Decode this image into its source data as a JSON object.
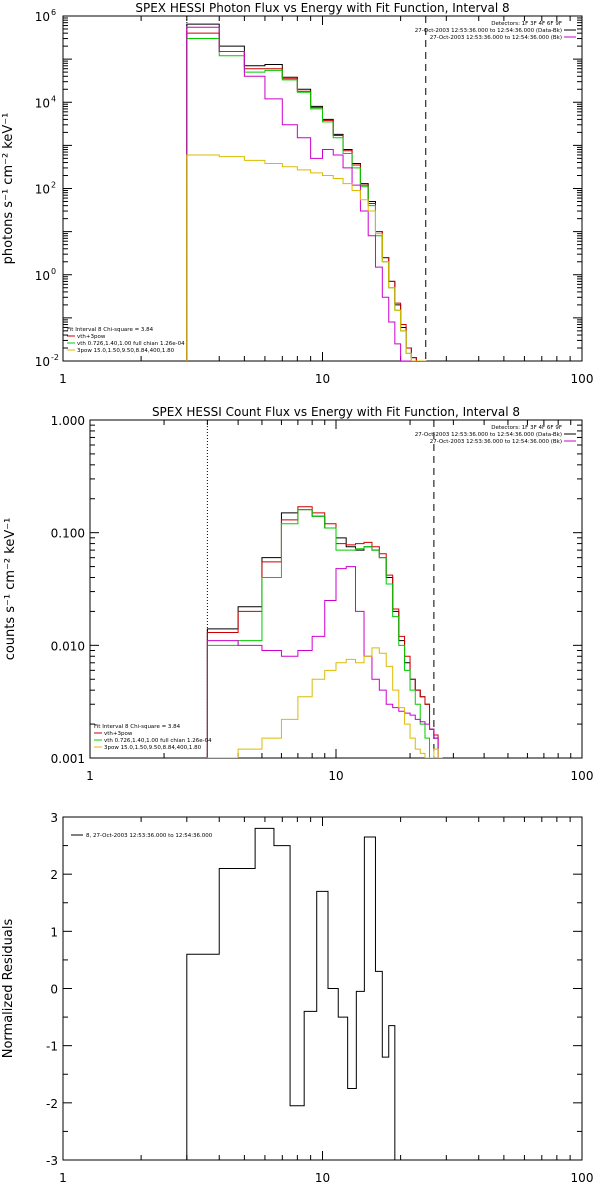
{
  "chart_data": [
    {
      "type": "line",
      "title": "SPEX HESSI Photon Flux vs Energy with Fit Function, Interval 8",
      "ylabel": "photons s⁻¹ cm⁻² keV⁻¹",
      "xlabel": "",
      "xscale": "log",
      "yscale": "log",
      "xlim": [
        1,
        100
      ],
      "ylim": [
        0.01,
        1000000
      ],
      "x_ticks": [
        1,
        10,
        100
      ],
      "x_tick_labels": [
        "1",
        "10",
        "100"
      ],
      "y_ticks": [
        0.01,
        1,
        100,
        10000,
        1000000
      ],
      "y_tick_labels": [
        "10",
        "10",
        "10",
        "10",
        "10"
      ],
      "y_tick_exponents": [
        "-2",
        "0",
        "2",
        "4",
        "6"
      ],
      "vlines": [
        {
          "x": 3.0,
          "style": "dotted",
          "color": "#000000"
        },
        {
          "x": 25.0,
          "style": "dashed",
          "color": "#000000"
        }
      ],
      "legend_top": [
        "Detectors: 1F 3F 4F 6F 9F",
        "27-Oct-2003 12:53:36.000 to 12:54:36.000 (Data-Bk)",
        "27-Oct-2003 12:53:36.000 to 12:54:36.000 (Bk)"
      ],
      "legend_top_colors": [
        "",
        "#000000",
        "#cc00cc"
      ],
      "legend_bottom": [
        "Fit Interval 8    Chi-square = 3.84",
        "vth+3pow",
        "vth 0.726,1.40,1.00  full chian 1.26e-04",
        "3pow 15.0,1.50,9.50,8.84,400,1.80"
      ],
      "legend_bottom_colors": [
        "",
        "#cc0000",
        "#00cc00",
        "#ddbb00"
      ],
      "series": [
        {
          "color": "#000000",
          "edges": [
            3.0,
            3.5,
            4.0,
            4.5,
            5.0,
            5.5,
            6.0,
            6.5,
            7.0,
            7.5,
            8.0,
            8.5,
            9.0,
            9.5,
            10.0,
            10.5,
            11.0,
            11.5,
            12.0,
            12.5,
            13.0,
            13.5,
            14.0,
            14.5,
            15.0,
            16.0,
            17.0,
            18.0,
            19.0,
            20.0,
            21.0,
            22.0,
            23.0,
            24.0,
            25.0
          ],
          "values": [
            650000,
            650000,
            200000,
            200000,
            70000,
            70000,
            75000,
            75000,
            38000,
            38000,
            20000,
            20000,
            8000,
            8000,
            4000,
            4000,
            1800,
            1800,
            800,
            800,
            380,
            380,
            130,
            130,
            50,
            10,
            2.5,
            0.7,
            0.2,
            0.06,
            0.02,
            0.012,
            0.01,
            0.01
          ]
        },
        {
          "color": "#cc0000",
          "edges": [
            3.0,
            3.5,
            4.0,
            4.5,
            5.0,
            5.5,
            6.0,
            6.5,
            7.0,
            7.5,
            8.0,
            8.5,
            9.0,
            9.5,
            10.0,
            10.5,
            11.0,
            11.5,
            12.0,
            12.5,
            13.0,
            13.5,
            14.0,
            14.5,
            15.0,
            16.0,
            17.0,
            18.0,
            19.0,
            20.0,
            21.0,
            22.0,
            23.0,
            24.0,
            25.0
          ],
          "values": [
            400000,
            400000,
            150000,
            150000,
            60000,
            60000,
            60000,
            60000,
            35000,
            35000,
            18000,
            18000,
            7500,
            7500,
            3800,
            3800,
            1700,
            1700,
            750,
            750,
            350,
            350,
            120,
            120,
            45,
            10,
            2.5,
            0.7,
            0.22,
            0.07,
            0.02,
            0.012,
            0.01,
            0.01
          ]
        },
        {
          "color": "#00cc00",
          "edges": [
            3.0,
            3.5,
            4.0,
            4.5,
            5.0,
            5.5,
            6.0,
            6.5,
            7.0,
            7.5,
            8.0,
            8.5,
            9.0,
            9.5,
            10.0,
            10.5,
            11.0,
            11.5,
            12.0,
            12.5,
            13.0,
            13.5,
            14.0,
            14.5,
            15.0,
            16.0,
            17.0,
            18.0,
            19.0,
            20.0,
            21.0,
            22.0,
            23.0,
            24.0,
            25.0
          ],
          "values": [
            300000,
            300000,
            120000,
            120000,
            50000,
            50000,
            55000,
            55000,
            33000,
            33000,
            17000,
            17000,
            7000,
            7000,
            3500,
            3500,
            1500,
            1500,
            650,
            650,
            300,
            300,
            110,
            110,
            40,
            8,
            2,
            0.5,
            0.15,
            0.05,
            0.015,
            0.01,
            0.01,
            0.01
          ]
        },
        {
          "color": "#cc00cc",
          "edges": [
            3.0,
            3.5,
            4.0,
            4.5,
            5.0,
            5.5,
            6.0,
            6.5,
            7.0,
            7.5,
            8.0,
            8.5,
            9.0,
            9.5,
            10.0,
            10.5,
            11.0,
            11.5,
            12.0,
            12.5,
            13.0,
            13.5,
            14.0,
            14.5,
            15.0,
            16.0,
            17.0,
            18.0,
            19.0,
            20.0,
            21.0,
            22.0,
            23.0,
            24.0,
            25.0
          ],
          "values": [
            550000,
            550000,
            150000,
            150000,
            40000,
            40000,
            12000,
            12000,
            3000,
            3000,
            1500,
            1500,
            500,
            500,
            800,
            800,
            600,
            600,
            300,
            300,
            120,
            120,
            30,
            30,
            8,
            1.5,
            0.3,
            0.08,
            0.025,
            0.01,
            0.01,
            0.01,
            0.01,
            0.01
          ]
        },
        {
          "color": "#ddbb00",
          "edges": [
            3.0,
            3.5,
            4.0,
            4.5,
            5.0,
            5.5,
            6.0,
            6.5,
            7.0,
            7.5,
            8.0,
            8.5,
            9.0,
            9.5,
            10.0,
            10.5,
            11.0,
            11.5,
            12.0,
            12.5,
            13.0,
            13.5,
            14.0,
            14.5,
            15.0,
            16.0,
            17.0,
            18.0,
            19.0,
            20.0,
            21.0,
            22.0,
            23.0,
            24.0,
            25.0
          ],
          "values": [
            600,
            600,
            550,
            550,
            450,
            450,
            380,
            380,
            320,
            320,
            270,
            270,
            230,
            230,
            200,
            200,
            170,
            170,
            130,
            130,
            90,
            90,
            55,
            55,
            30,
            9,
            2,
            0.5,
            0.15,
            0.05,
            0.015,
            0.01,
            0.01,
            0.01
          ]
        }
      ]
    },
    {
      "type": "line",
      "title": "SPEX HESSI Count Flux vs Energy with Fit Function, Interval 8",
      "ylabel": "counts s⁻¹ cm⁻² keV⁻¹",
      "xlabel": "",
      "xscale": "log",
      "yscale": "log",
      "xlim": [
        1,
        100
      ],
      "ylim": [
        0.001,
        1.0
      ],
      "x_ticks": [
        1,
        10,
        100
      ],
      "x_tick_labels": [
        "1",
        "10",
        "100"
      ],
      "y_ticks": [
        0.001,
        0.01,
        0.1,
        1.0
      ],
      "y_tick_labels": [
        "0.001",
        "0.010",
        "0.100",
        "1.000"
      ],
      "vlines": [
        {
          "x": 3.0,
          "style": "dotted",
          "color": "#000000"
        },
        {
          "x": 25.0,
          "style": "dashed",
          "color": "#000000"
        }
      ],
      "legend_top": [
        "Detectors: 1F 3F 4F 6F 9F",
        "27-Oct-2003 12:53:36.000 to 12:54:36.000 (Data-Bk)",
        "27-Oct-2003 12:53:36.000 to 12:54:36.000 (Bk)"
      ],
      "legend_top_colors": [
        "",
        "#000000",
        "#cc00cc"
      ],
      "legend_bottom": [
        "Fit Interval 8    Chi-square = 3.84",
        "vth+3pow",
        "vth 0.726,1.40,1.00  full chian 1.26e-04",
        "3pow 15.0,1.50,9.50,8.84,400,1.80"
      ],
      "legend_bottom_colors": [
        "",
        "#cc0000",
        "#00cc00",
        "#ddbb00"
      ],
      "series": [
        {
          "color": "#000000",
          "edges": [
            3.0,
            4.0,
            5.0,
            6.0,
            7.0,
            8.0,
            9.0,
            10.0,
            11.0,
            12.0,
            13.0,
            14.0,
            15.0,
            16.0,
            17.0,
            18.0,
            19.0,
            20.0,
            21.0,
            22.0,
            23.0,
            24.0,
            25.0,
            26.0,
            27.0
          ],
          "values": [
            0.014,
            0.022,
            0.06,
            0.15,
            0.16,
            0.14,
            0.11,
            0.09,
            0.075,
            0.07,
            0.075,
            0.07,
            0.06,
            0.04,
            0.02,
            0.011,
            0.007,
            0.005,
            0.004,
            0.0035,
            0.003,
            0.0018,
            0.0015,
            0.001
          ]
        },
        {
          "color": "#cc0000",
          "edges": [
            3.0,
            4.0,
            5.0,
            6.0,
            7.0,
            8.0,
            9.0,
            10.0,
            11.0,
            12.0,
            13.0,
            14.0,
            15.0,
            16.0,
            17.0,
            18.0,
            19.0,
            20.0,
            21.0,
            22.0,
            23.0,
            24.0,
            25.0,
            26.0,
            27.0
          ],
          "values": [
            0.013,
            0.02,
            0.055,
            0.13,
            0.17,
            0.15,
            0.12,
            0.08,
            0.078,
            0.08,
            0.082,
            0.075,
            0.065,
            0.042,
            0.021,
            0.012,
            0.008,
            0.005,
            0.004,
            0.0035,
            0.003,
            0.0018,
            0.0016,
            0.001
          ]
        },
        {
          "color": "#00cc00",
          "edges": [
            3.0,
            4.0,
            5.0,
            6.0,
            7.0,
            8.0,
            9.0,
            10.0,
            11.0,
            12.0,
            13.0,
            14.0,
            15.0,
            16.0,
            17.0,
            18.0,
            19.0,
            20.0,
            21.0,
            22.0,
            23.0,
            24.0,
            25.0,
            26.0,
            27.0
          ],
          "values": [
            0.01,
            0.011,
            0.04,
            0.12,
            0.16,
            0.14,
            0.11,
            0.07,
            0.07,
            0.072,
            0.075,
            0.07,
            0.06,
            0.035,
            0.018,
            0.01,
            0.006,
            0.004,
            0.003,
            0.002,
            0.0015,
            0.001,
            0.001,
            0.001
          ]
        },
        {
          "color": "#cc00cc",
          "edges": [
            3.0,
            4.0,
            5.0,
            6.0,
            7.0,
            8.0,
            9.0,
            10.0,
            11.0,
            12.0,
            13.0,
            14.0,
            15.0,
            16.0,
            17.0,
            18.0,
            19.0,
            20.0,
            21.0,
            22.0,
            23.0,
            24.0,
            25.0,
            26.0,
            27.0
          ],
          "values": [
            0.011,
            0.01,
            0.009,
            0.008,
            0.009,
            0.012,
            0.025,
            0.048,
            0.05,
            0.02,
            0.008,
            0.005,
            0.004,
            0.003,
            0.0028,
            0.0026,
            0.0025,
            0.0024,
            0.0022,
            0.0021,
            0.002,
            0.0018,
            0.0015,
            0.001
          ]
        },
        {
          "color": "#ddbb00",
          "edges": [
            3.0,
            4.0,
            5.0,
            6.0,
            7.0,
            8.0,
            9.0,
            10.0,
            11.0,
            12.0,
            13.0,
            14.0,
            15.0,
            16.0,
            17.0,
            18.0,
            19.0,
            20.0,
            21.0,
            22.0,
            23.0,
            24.0,
            25.0,
            26.0,
            27.0
          ],
          "values": [
            0.001,
            0.0012,
            0.0015,
            0.0022,
            0.0035,
            0.005,
            0.006,
            0.007,
            0.0075,
            0.007,
            0.008,
            0.0095,
            0.0085,
            0.0065,
            0.004,
            0.0028,
            0.002,
            0.0015,
            0.0012,
            0.0011,
            0.001,
            0.001,
            0.0012,
            0.001
          ]
        }
      ]
    },
    {
      "type": "line",
      "title": "",
      "ylabel": "Normalized Residuals",
      "xlabel": "",
      "xscale": "log",
      "yscale": "linear",
      "xlim": [
        1,
        100
      ],
      "ylim": [
        -3,
        3
      ],
      "x_ticks": [
        1,
        10,
        100
      ],
      "x_tick_labels": [
        "1",
        "10",
        "100"
      ],
      "y_ticks": [
        -3,
        -2,
        -1,
        0,
        1,
        2,
        3
      ],
      "y_tick_labels": [
        "-3",
        "-2",
        "-1",
        "0",
        "1",
        "2",
        "3"
      ],
      "legend_top": [
        "8, 27-Oct-2003 12:53:36.000 to 12:54:36.000"
      ],
      "legend_top_colors": [
        "#000000"
      ],
      "series": [
        {
          "color": "#000000",
          "edges": [
            3.0,
            3.5,
            4.0,
            4.5,
            5.0,
            5.5,
            6.0,
            6.5,
            7.0,
            7.5,
            8.0,
            8.5,
            9.0,
            9.5,
            10.0,
            10.5,
            11.0,
            11.5,
            12.0,
            12.5,
            13.0,
            13.5,
            14.0,
            14.5,
            15.0,
            16.0,
            17.0,
            18.0,
            19.0,
            20.0,
            21.0,
            22.0,
            23.0,
            24.0,
            25.0
          ],
          "values": [
            0.6,
            0.6,
            2.1,
            2.1,
            2.1,
            2.8,
            2.8,
            2.5,
            2.5,
            -2.05,
            -2.05,
            -0.4,
            -0.4,
            1.7,
            1.7,
            0.0,
            0.0,
            -0.5,
            -0.5,
            -1.75,
            -1.75,
            -0.05,
            -0.05,
            2.65,
            2.65,
            0.3,
            -1.2,
            -0.65,
            -3.0,
            -3.0,
            -3.0,
            -3.0,
            -3.0,
            -3.0
          ],
          "start_from": -3.0
        }
      ]
    }
  ]
}
